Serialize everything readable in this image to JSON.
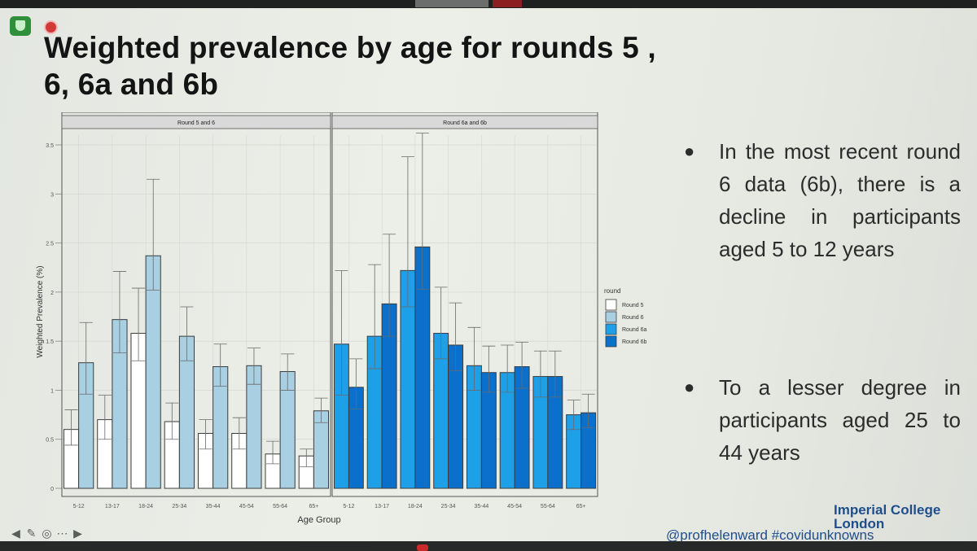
{
  "slide": {
    "title_line1": "Weighted prevalence by age for rounds 5 ,",
    "title_line2": "6, 6a and 6b",
    "bullets": [
      "In the most recent round 6 data (6b), there is a decline in participants aged 5 to 12 years",
      "To a lesser degree in participants aged 25 to 44 years"
    ],
    "logo_line1": "Imperial College",
    "logo_line2": "London",
    "handle": "@profhelenward #covidunknowns"
  },
  "colors": {
    "Round 5": "#ffffff",
    "Round 6": "#a8cfe2",
    "Round 6a": "#1ea0e8",
    "Round 6b": "#0b6fcc",
    "bar_stroke": "#3c3c3c",
    "panel_header": "#d9d9d9"
  },
  "chart_data": {
    "type": "bar",
    "ylabel": "Weighted Prevalence (%)",
    "xlabel": "Age Group",
    "ylim": [
      0,
      3.6
    ],
    "yticks": [
      0,
      0.5,
      1,
      1.5,
      2,
      2.5,
      3,
      3.5
    ],
    "ytick_labels": [
      "0",
      "0.5",
      "1",
      "1.5",
      "2",
      "2.5",
      "3",
      "3.5"
    ],
    "categories": [
      "5-12",
      "13-17",
      "18-24",
      "25-34",
      "35-44",
      "45-54",
      "55-64",
      "65+"
    ],
    "legend_title": "round",
    "legend": [
      "Round 5",
      "Round 6",
      "Round 6a",
      "Round 6b"
    ],
    "panels": [
      {
        "title": "Round 5 and 6",
        "series": [
          {
            "name": "Round 5",
            "values": [
              0.6,
              0.7,
              1.58,
              0.68,
              0.56,
              0.56,
              0.35,
              0.33
            ],
            "lower": [
              0.44,
              0.5,
              1.3,
              0.5,
              0.4,
              0.4,
              0.25,
              0.22
            ],
            "upper": [
              0.8,
              0.95,
              2.04,
              0.87,
              0.7,
              0.72,
              0.48,
              0.4
            ]
          },
          {
            "name": "Round 6",
            "values": [
              1.28,
              1.72,
              2.37,
              1.55,
              1.24,
              1.25,
              1.19,
              0.79
            ],
            "lower": [
              0.96,
              1.38,
              2.02,
              1.3,
              1.04,
              1.06,
              1.0,
              0.67
            ],
            "upper": [
              1.69,
              2.21,
              3.15,
              1.85,
              1.47,
              1.43,
              1.37,
              0.92
            ]
          }
        ]
      },
      {
        "title": "Round 6a and 6b",
        "series": [
          {
            "name": "Round 6a",
            "values": [
              1.47,
              1.55,
              2.22,
              1.58,
              1.25,
              1.18,
              1.14,
              0.75
            ],
            "lower": [
              0.95,
              1.22,
              1.85,
              1.32,
              1.0,
              0.98,
              0.93,
              0.6
            ],
            "upper": [
              2.22,
              2.28,
              3.38,
              2.05,
              1.64,
              1.46,
              1.4,
              0.9
            ]
          },
          {
            "name": "Round 6b",
            "values": [
              1.03,
              1.88,
              2.46,
              1.46,
              1.18,
              1.24,
              1.14,
              0.77
            ],
            "lower": [
              0.81,
              1.55,
              2.03,
              1.2,
              0.98,
              1.02,
              0.93,
              0.62
            ],
            "upper": [
              1.32,
              2.59,
              3.62,
              1.89,
              1.45,
              1.49,
              1.4,
              0.96
            ]
          }
        ]
      }
    ]
  }
}
